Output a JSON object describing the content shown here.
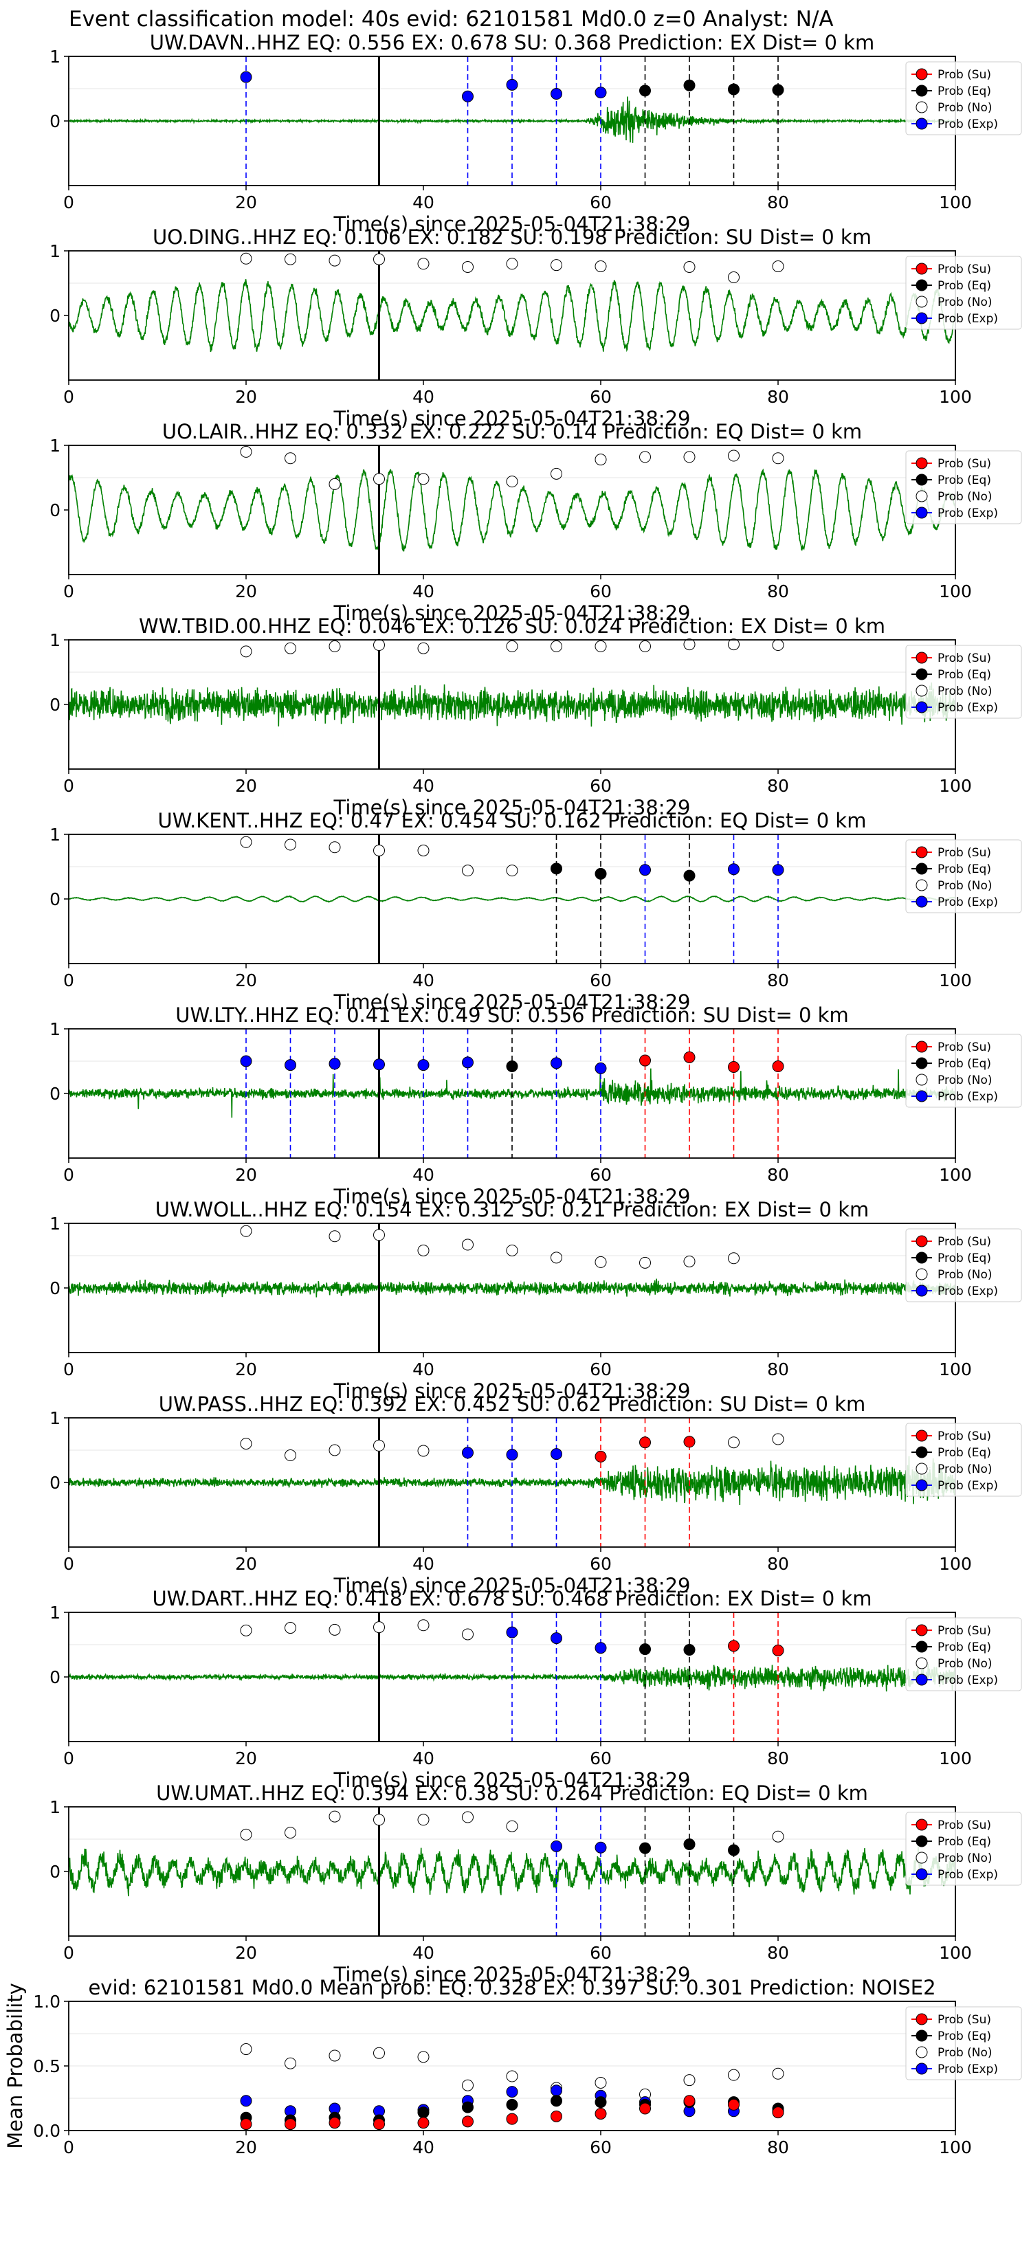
{
  "suptitle": "Event classification model: 40s evid: 62101581 Md0.0 z=0 Analyst: N/A",
  "xlabel": "Time(s) since 2025-05-04T21:38:29",
  "legend": [
    "Prob (Su)",
    "Prob (Eq)",
    "Prob (No)",
    "Prob (Exp)"
  ],
  "colors": {
    "waveform": "#008000",
    "su": "#ff0000",
    "eq": "#000000",
    "no": "#ffffff",
    "exp": "#0000ff",
    "pick_line": "#000000"
  },
  "chart_data": [
    {
      "type": "scatter",
      "title": "UW.DAVN..HHZ   EQ: 0.556  EX: 0.678  SU: 0.368   Prediction: EX    Dist= 0 km",
      "xlim": [
        0,
        100
      ],
      "ylim": [
        -1,
        1
      ],
      "yticks": [
        "1",
        "0"
      ],
      "xticks": [
        "0",
        "20",
        "40",
        "60",
        "80",
        "100"
      ],
      "pick": 35,
      "waveform": {
        "style": "quiet_burst",
        "noise": 0.015,
        "event_start": 58,
        "event_peak": 63,
        "event_amp": 0.4
      },
      "points": [
        {
          "x": 20,
          "y": 0.68,
          "cls": "exp"
        },
        {
          "x": 45,
          "y": 0.38,
          "cls": "exp"
        },
        {
          "x": 50,
          "y": 0.56,
          "cls": "exp"
        },
        {
          "x": 55,
          "y": 0.42,
          "cls": "exp"
        },
        {
          "x": 60,
          "y": 0.44,
          "cls": "exp"
        },
        {
          "x": 65,
          "y": 0.47,
          "cls": "eq"
        },
        {
          "x": 70,
          "y": 0.55,
          "cls": "eq"
        },
        {
          "x": 75,
          "y": 0.49,
          "cls": "eq"
        },
        {
          "x": 80,
          "y": 0.48,
          "cls": "eq"
        }
      ]
    },
    {
      "type": "scatter",
      "title": "UO.DING..HHZ   EQ: 0.106  EX: 0.182  SU: 0.198   Prediction: SU    Dist= 0 km",
      "xlim": [
        0,
        100
      ],
      "ylim": [
        -1,
        1
      ],
      "yticks": [
        "1",
        "0"
      ],
      "xticks": [
        "0",
        "20",
        "40",
        "60",
        "80",
        "100"
      ],
      "pick": 35,
      "waveform": {
        "style": "oscillating",
        "amp": 0.5,
        "period": 2.6,
        "noise": 0.06
      },
      "points": [
        {
          "x": 20,
          "y": 0.88,
          "cls": "no"
        },
        {
          "x": 25,
          "y": 0.87,
          "cls": "no"
        },
        {
          "x": 30,
          "y": 0.85,
          "cls": "no"
        },
        {
          "x": 35,
          "y": 0.87,
          "cls": "no"
        },
        {
          "x": 40,
          "y": 0.8,
          "cls": "no"
        },
        {
          "x": 45,
          "y": 0.75,
          "cls": "no"
        },
        {
          "x": 50,
          "y": 0.8,
          "cls": "no"
        },
        {
          "x": 55,
          "y": 0.78,
          "cls": "no"
        },
        {
          "x": 60,
          "y": 0.76,
          "cls": "no"
        },
        {
          "x": 70,
          "y": 0.75,
          "cls": "no"
        },
        {
          "x": 75,
          "y": 0.59,
          "cls": "no"
        },
        {
          "x": 80,
          "y": 0.76,
          "cls": "no"
        }
      ]
    },
    {
      "type": "scatter",
      "title": "UO.LAIR..HHZ   EQ: 0.332  EX: 0.222  SU: 0.14   Prediction: EQ    Dist= 0 km",
      "xlim": [
        0,
        100
      ],
      "ylim": [
        -1,
        1
      ],
      "yticks": [
        "1",
        "0"
      ],
      "xticks": [
        "0",
        "20",
        "40",
        "60",
        "80",
        "100"
      ],
      "pick": 35,
      "waveform": {
        "style": "oscillating",
        "amp": 0.6,
        "period": 3.0,
        "noise": 0.05
      },
      "points": [
        {
          "x": 20,
          "y": 0.9,
          "cls": "no"
        },
        {
          "x": 25,
          "y": 0.8,
          "cls": "no"
        },
        {
          "x": 30,
          "y": 0.4,
          "cls": "no"
        },
        {
          "x": 35,
          "y": 0.48,
          "cls": "no"
        },
        {
          "x": 40,
          "y": 0.48,
          "cls": "no"
        },
        {
          "x": 50,
          "y": 0.44,
          "cls": "no"
        },
        {
          "x": 55,
          "y": 0.56,
          "cls": "no"
        },
        {
          "x": 60,
          "y": 0.78,
          "cls": "no"
        },
        {
          "x": 65,
          "y": 0.82,
          "cls": "no"
        },
        {
          "x": 70,
          "y": 0.82,
          "cls": "no"
        },
        {
          "x": 75,
          "y": 0.84,
          "cls": "no"
        },
        {
          "x": 80,
          "y": 0.8,
          "cls": "no"
        }
      ]
    },
    {
      "type": "scatter",
      "title": "WW.TBID.00.HHZ   EQ: 0.046  EX: 0.126  SU: 0.024   Prediction: EX    Dist= 0 km",
      "xlim": [
        0,
        100
      ],
      "ylim": [
        -1,
        1
      ],
      "yticks": [
        "1",
        "0"
      ],
      "xticks": [
        "0",
        "20",
        "40",
        "60",
        "80",
        "100"
      ],
      "pick": 35,
      "waveform": {
        "style": "noise",
        "amp": 0.35,
        "noise": 0.28
      },
      "points": [
        {
          "x": 20,
          "y": 0.82,
          "cls": "no"
        },
        {
          "x": 25,
          "y": 0.87,
          "cls": "no"
        },
        {
          "x": 30,
          "y": 0.9,
          "cls": "no"
        },
        {
          "x": 35,
          "y": 0.92,
          "cls": "no"
        },
        {
          "x": 40,
          "y": 0.87,
          "cls": "no"
        },
        {
          "x": 50,
          "y": 0.9,
          "cls": "no"
        },
        {
          "x": 55,
          "y": 0.9,
          "cls": "no"
        },
        {
          "x": 60,
          "y": 0.9,
          "cls": "no"
        },
        {
          "x": 65,
          "y": 0.9,
          "cls": "no"
        },
        {
          "x": 70,
          "y": 0.93,
          "cls": "no"
        },
        {
          "x": 75,
          "y": 0.93,
          "cls": "no"
        },
        {
          "x": 80,
          "y": 0.92,
          "cls": "no"
        }
      ]
    },
    {
      "type": "scatter",
      "title": "UW.KENT..HHZ   EQ: 0.47  EX: 0.454  SU: 0.162   Prediction: EQ    Dist= 0 km",
      "xlim": [
        0,
        100
      ],
      "ylim": [
        -1,
        1
      ],
      "yticks": [
        "1",
        "0"
      ],
      "xticks": [
        "0",
        "20",
        "40",
        "60",
        "80",
        "100"
      ],
      "pick": 35,
      "waveform": {
        "style": "smooth",
        "amp": 0.04,
        "period": 3.0,
        "noise": 0.005
      },
      "points": [
        {
          "x": 20,
          "y": 0.88,
          "cls": "no"
        },
        {
          "x": 25,
          "y": 0.84,
          "cls": "no"
        },
        {
          "x": 30,
          "y": 0.8,
          "cls": "no"
        },
        {
          "x": 35,
          "y": 0.75,
          "cls": "no"
        },
        {
          "x": 40,
          "y": 0.75,
          "cls": "no"
        },
        {
          "x": 45,
          "y": 0.44,
          "cls": "no"
        },
        {
          "x": 50,
          "y": 0.44,
          "cls": "no"
        },
        {
          "x": 55,
          "y": 0.47,
          "cls": "eq"
        },
        {
          "x": 60,
          "y": 0.39,
          "cls": "eq"
        },
        {
          "x": 65,
          "y": 0.45,
          "cls": "exp"
        },
        {
          "x": 70,
          "y": 0.36,
          "cls": "eq"
        },
        {
          "x": 75,
          "y": 0.46,
          "cls": "exp"
        },
        {
          "x": 80,
          "y": 0.45,
          "cls": "exp"
        }
      ]
    },
    {
      "type": "scatter",
      "title": "UW.LTY..HHZ   EQ: 0.41  EX: 0.49  SU: 0.556   Prediction: SU    Dist= 0 km",
      "xlim": [
        0,
        100
      ],
      "ylim": [
        -1,
        1
      ],
      "yticks": [
        "1",
        "0"
      ],
      "xticks": [
        "0",
        "20",
        "40",
        "60",
        "80",
        "100"
      ],
      "pick": 35,
      "waveform": {
        "style": "noise_spikes",
        "amp": 0.12,
        "noise": 0.12,
        "event_start": 60,
        "event_amp": 0.35
      },
      "points": [
        {
          "x": 20,
          "y": 0.5,
          "cls": "exp"
        },
        {
          "x": 25,
          "y": 0.44,
          "cls": "exp"
        },
        {
          "x": 30,
          "y": 0.46,
          "cls": "exp"
        },
        {
          "x": 35,
          "y": 0.45,
          "cls": "exp"
        },
        {
          "x": 40,
          "y": 0.44,
          "cls": "exp"
        },
        {
          "x": 45,
          "y": 0.48,
          "cls": "exp"
        },
        {
          "x": 50,
          "y": 0.42,
          "cls": "eq"
        },
        {
          "x": 55,
          "y": 0.47,
          "cls": "exp"
        },
        {
          "x": 60,
          "y": 0.39,
          "cls": "exp"
        },
        {
          "x": 65,
          "y": 0.51,
          "cls": "su"
        },
        {
          "x": 70,
          "y": 0.56,
          "cls": "su"
        },
        {
          "x": 75,
          "y": 0.41,
          "cls": "su"
        },
        {
          "x": 80,
          "y": 0.42,
          "cls": "su"
        }
      ]
    },
    {
      "type": "scatter",
      "title": "UW.WOLL..HHZ   EQ: 0.154  EX: 0.312  SU: 0.21   Prediction: EX    Dist= 0 km",
      "xlim": [
        0,
        100
      ],
      "ylim": [
        -1,
        1
      ],
      "yticks": [
        "1",
        "0"
      ],
      "xticks": [
        "0",
        "20",
        "40",
        "60",
        "80",
        "100"
      ],
      "pick": 35,
      "waveform": {
        "style": "noise",
        "amp": 0.14,
        "noise": 0.14
      },
      "points": [
        {
          "x": 20,
          "y": 0.88,
          "cls": "no"
        },
        {
          "x": 30,
          "y": 0.8,
          "cls": "no"
        },
        {
          "x": 35,
          "y": 0.82,
          "cls": "no"
        },
        {
          "x": 40,
          "y": 0.58,
          "cls": "no"
        },
        {
          "x": 45,
          "y": 0.67,
          "cls": "no"
        },
        {
          "x": 50,
          "y": 0.58,
          "cls": "no"
        },
        {
          "x": 55,
          "y": 0.47,
          "cls": "no"
        },
        {
          "x": 60,
          "y": 0.4,
          "cls": "no"
        },
        {
          "x": 65,
          "y": 0.39,
          "cls": "no"
        },
        {
          "x": 70,
          "y": 0.41,
          "cls": "no"
        },
        {
          "x": 75,
          "y": 0.46,
          "cls": "no"
        }
      ]
    },
    {
      "type": "scatter",
      "title": "UW.PASS..HHZ   EQ: 0.392  EX: 0.452  SU: 0.62   Prediction: SU    Dist= 0 km",
      "xlim": [
        0,
        100
      ],
      "ylim": [
        -1,
        1
      ],
      "yticks": [
        "1",
        "0"
      ],
      "xticks": [
        "0",
        "20",
        "40",
        "60",
        "80",
        "100"
      ],
      "pick": 35,
      "waveform": {
        "style": "growing",
        "amp": 0.1,
        "noise": 0.07,
        "event_start": 58,
        "event_amp": 0.5
      },
      "points": [
        {
          "x": 20,
          "y": 0.6,
          "cls": "no"
        },
        {
          "x": 25,
          "y": 0.42,
          "cls": "no"
        },
        {
          "x": 30,
          "y": 0.5,
          "cls": "no"
        },
        {
          "x": 35,
          "y": 0.57,
          "cls": "no"
        },
        {
          "x": 40,
          "y": 0.49,
          "cls": "no"
        },
        {
          "x": 45,
          "y": 0.46,
          "cls": "exp"
        },
        {
          "x": 50,
          "y": 0.43,
          "cls": "exp"
        },
        {
          "x": 55,
          "y": 0.44,
          "cls": "exp"
        },
        {
          "x": 60,
          "y": 0.4,
          "cls": "su"
        },
        {
          "x": 65,
          "y": 0.62,
          "cls": "su"
        },
        {
          "x": 70,
          "y": 0.63,
          "cls": "su"
        },
        {
          "x": 75,
          "y": 0.62,
          "cls": "no"
        },
        {
          "x": 80,
          "y": 0.67,
          "cls": "no"
        }
      ]
    },
    {
      "type": "scatter",
      "title": "UW.DART..HHZ   EQ: 0.418  EX: 0.678  SU: 0.468   Prediction: EX    Dist= 0 km",
      "xlim": [
        0,
        100
      ],
      "ylim": [
        -1,
        1
      ],
      "yticks": [
        "1",
        "0"
      ],
      "xticks": [
        "0",
        "20",
        "40",
        "60",
        "80",
        "100"
      ],
      "pick": 35,
      "waveform": {
        "style": "growing",
        "amp": 0.06,
        "noise": 0.05,
        "event_start": 59,
        "event_amp": 0.3
      },
      "points": [
        {
          "x": 20,
          "y": 0.72,
          "cls": "no"
        },
        {
          "x": 25,
          "y": 0.76,
          "cls": "no"
        },
        {
          "x": 30,
          "y": 0.73,
          "cls": "no"
        },
        {
          "x": 35,
          "y": 0.77,
          "cls": "no"
        },
        {
          "x": 40,
          "y": 0.8,
          "cls": "no"
        },
        {
          "x": 45,
          "y": 0.66,
          "cls": "no"
        },
        {
          "x": 50,
          "y": 0.69,
          "cls": "exp"
        },
        {
          "x": 55,
          "y": 0.6,
          "cls": "exp"
        },
        {
          "x": 60,
          "y": 0.45,
          "cls": "exp"
        },
        {
          "x": 65,
          "y": 0.43,
          "cls": "eq"
        },
        {
          "x": 70,
          "y": 0.42,
          "cls": "eq"
        },
        {
          "x": 75,
          "y": 0.48,
          "cls": "su"
        },
        {
          "x": 80,
          "y": 0.41,
          "cls": "su"
        }
      ]
    },
    {
      "type": "scatter",
      "title": "UW.UMAT..HHZ   EQ: 0.394  EX: 0.38  SU: 0.264   Prediction: EQ    Dist= 0 km",
      "xlim": [
        0,
        100
      ],
      "ylim": [
        -1,
        1
      ],
      "yticks": [
        "1",
        "0"
      ],
      "xticks": [
        "0",
        "20",
        "40",
        "60",
        "80",
        "100"
      ],
      "pick": 35,
      "waveform": {
        "style": "oscillating",
        "amp": 0.22,
        "period": 2.0,
        "noise": 0.14
      },
      "points": [
        {
          "x": 20,
          "y": 0.57,
          "cls": "no"
        },
        {
          "x": 25,
          "y": 0.6,
          "cls": "no"
        },
        {
          "x": 30,
          "y": 0.85,
          "cls": "no"
        },
        {
          "x": 35,
          "y": 0.8,
          "cls": "no"
        },
        {
          "x": 40,
          "y": 0.8,
          "cls": "no"
        },
        {
          "x": 45,
          "y": 0.84,
          "cls": "no"
        },
        {
          "x": 50,
          "y": 0.7,
          "cls": "no"
        },
        {
          "x": 55,
          "y": 0.39,
          "cls": "exp"
        },
        {
          "x": 60,
          "y": 0.37,
          "cls": "exp"
        },
        {
          "x": 65,
          "y": 0.36,
          "cls": "eq"
        },
        {
          "x": 70,
          "y": 0.42,
          "cls": "eq"
        },
        {
          "x": 75,
          "y": 0.33,
          "cls": "eq"
        },
        {
          "x": 80,
          "y": 0.54,
          "cls": "no"
        }
      ]
    },
    {
      "type": "scatter",
      "title": "evid: 62101581  Md0.0   Mean prob:   EQ: 0.328  EX: 0.397  SU: 0.301   Prediction: NOISE2",
      "xlim": [
        0,
        100
      ],
      "ylim": [
        0,
        1
      ],
      "ylabel": "Mean Probability",
      "yticks": [
        "0.0",
        "0.5",
        "1.0"
      ],
      "xticks": [
        "0",
        "20",
        "40",
        "60",
        "80",
        "100"
      ],
      "series": [
        {
          "name": "Prob (No)",
          "cls": "no",
          "x": [
            20,
            25,
            30,
            35,
            40,
            45,
            50,
            55,
            60,
            65,
            70,
            75,
            80
          ],
          "y": [
            0.63,
            0.52,
            0.58,
            0.6,
            0.57,
            0.35,
            0.42,
            0.33,
            0.37,
            0.28,
            0.39,
            0.43,
            0.44
          ]
        },
        {
          "name": "Prob (Exp)",
          "cls": "exp",
          "x": [
            20,
            25,
            30,
            35,
            40,
            45,
            50,
            55,
            60,
            65,
            70,
            75,
            80
          ],
          "y": [
            0.23,
            0.15,
            0.17,
            0.15,
            0.16,
            0.23,
            0.3,
            0.31,
            0.27,
            0.22,
            0.15,
            0.15,
            0.15
          ]
        },
        {
          "name": "Prob (Eq)",
          "cls": "eq",
          "x": [
            20,
            25,
            30,
            35,
            40,
            45,
            50,
            55,
            60,
            65,
            70,
            75,
            80
          ],
          "y": [
            0.1,
            0.08,
            0.1,
            0.08,
            0.14,
            0.18,
            0.2,
            0.23,
            0.22,
            0.2,
            0.22,
            0.22,
            0.17
          ]
        },
        {
          "name": "Prob (Su)",
          "cls": "su",
          "x": [
            20,
            25,
            30,
            35,
            40,
            45,
            50,
            55,
            60,
            65,
            70,
            75,
            80
          ],
          "y": [
            0.05,
            0.05,
            0.06,
            0.05,
            0.06,
            0.07,
            0.09,
            0.11,
            0.13,
            0.17,
            0.23,
            0.2,
            0.14
          ]
        }
      ]
    }
  ]
}
